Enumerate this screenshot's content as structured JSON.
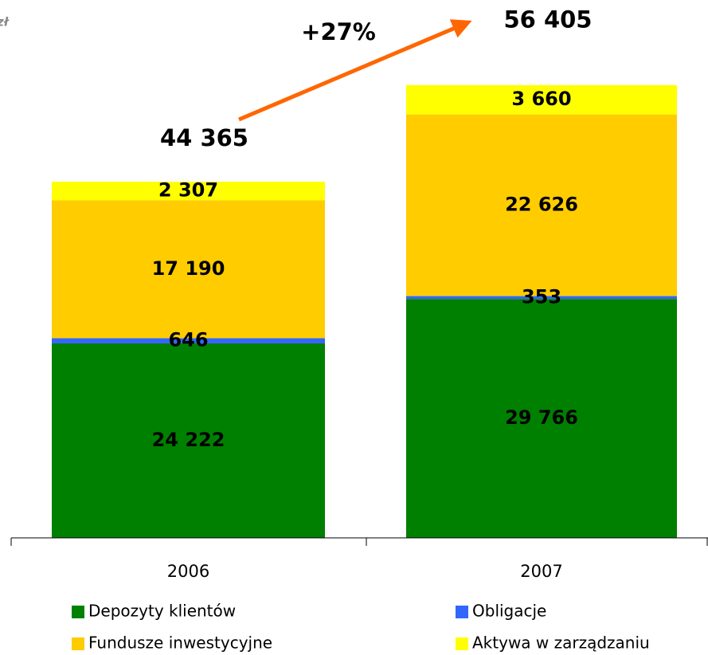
{
  "chart_data": {
    "type": "stacked_bar",
    "unit": "zł",
    "annotation": "+27%",
    "categories": [
      "2006",
      "2007"
    ],
    "ylim": [
      0,
      67000
    ],
    "series": [
      {
        "name": "Depozyty klientów",
        "color": "#008000",
        "values": [
          24222,
          29766
        ],
        "value_labels": [
          "24 222",
          "29 766"
        ]
      },
      {
        "name": "Obligacje",
        "color": "#3366ff",
        "values": [
          646,
          353
        ],
        "value_labels": [
          "646",
          "353"
        ]
      },
      {
        "name": "Fundusze inwestycyjne",
        "color": "#ffcc00",
        "values": [
          17190,
          22626
        ],
        "value_labels": [
          "17 190",
          "22 626"
        ]
      },
      {
        "name": "Aktywa w zarządzaniu",
        "color": "#ffff00",
        "values": [
          2307,
          3660
        ],
        "value_labels": [
          "2 307",
          "3 660"
        ]
      }
    ],
    "totals": [
      44365,
      56405
    ],
    "total_labels": [
      "44 365",
      "56 405"
    ]
  }
}
